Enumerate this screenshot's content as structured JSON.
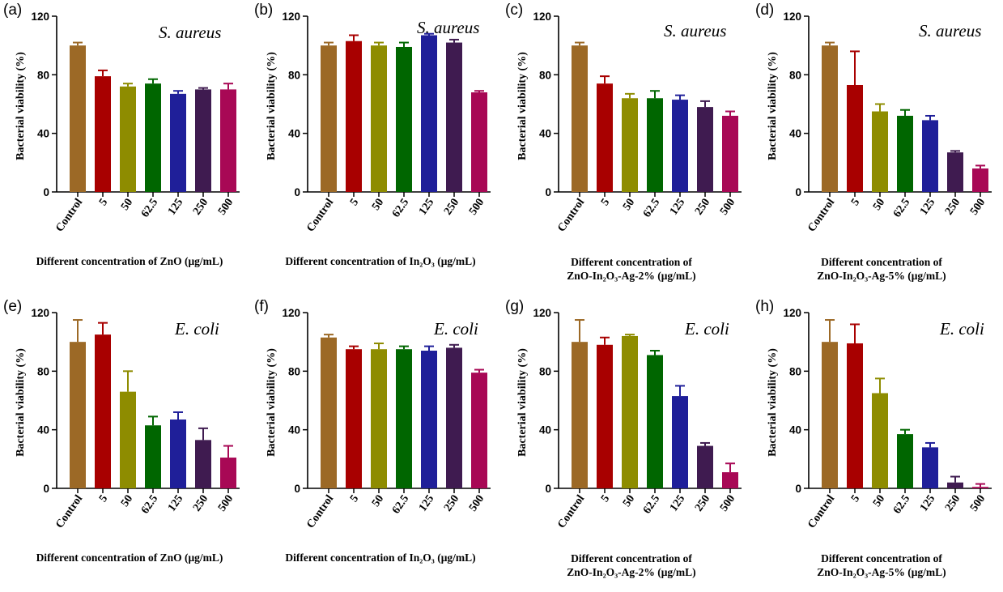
{
  "figure": {
    "y_axis_label": "Bacterial viability (%)"
  },
  "chart_data": [
    {
      "panel": "(a)",
      "type": "bar",
      "organism": "S. aureus",
      "xlabel_lines": [
        "Different concentration of ZnO (μg/mL)"
      ],
      "ylabel": "Bacterial viability (%)",
      "ylim": [
        0,
        120
      ],
      "yticks": [
        0,
        40,
        80,
        120
      ],
      "categories": [
        "Control",
        "5",
        "50",
        "62.5",
        "125",
        "250",
        "500"
      ],
      "values": [
        100,
        79,
        72,
        74,
        67,
        70,
        70
      ],
      "errors": [
        2,
        4,
        2,
        3,
        2,
        1,
        4
      ],
      "colors": [
        "#9C6926",
        "#A80000",
        "#8E8C00",
        "#006600",
        "#1F1F99",
        "#3F1B50",
        "#A80855"
      ]
    },
    {
      "panel": "(b)",
      "type": "bar",
      "organism": "S. aureus",
      "xlabel_lines": [
        "Different concentration of In₂O₃ (μg/mL)"
      ],
      "ylabel": "Bacterial viability (%)",
      "ylim": [
        0,
        120
      ],
      "yticks": [
        0,
        40,
        80,
        120
      ],
      "categories": [
        "Control",
        "5",
        "50",
        "62.5",
        "125",
        "250",
        "500"
      ],
      "values": [
        100,
        103,
        100,
        99,
        107,
        102,
        68
      ],
      "errors": [
        2,
        4,
        2,
        3,
        1,
        2,
        1
      ],
      "colors": [
        "#9C6926",
        "#A80000",
        "#8E8C00",
        "#006600",
        "#1F1F99",
        "#3F1B50",
        "#A80855"
      ]
    },
    {
      "panel": "(c)",
      "type": "bar",
      "organism": "S. aureus",
      "xlabel_lines": [
        "Different concentration of",
        "ZnO-In₂O₃-Ag-2% (μg/mL)"
      ],
      "ylabel": "Bacterial viability (%)",
      "ylim": [
        0,
        120
      ],
      "yticks": [
        0,
        40,
        80,
        120
      ],
      "categories": [
        "Control",
        "5",
        "50",
        "62.5",
        "125",
        "250",
        "500"
      ],
      "values": [
        100,
        74,
        64,
        64,
        63,
        58,
        52
      ],
      "errors": [
        2,
        5,
        3,
        5,
        3,
        4,
        3
      ],
      "colors": [
        "#9C6926",
        "#A80000",
        "#8E8C00",
        "#006600",
        "#1F1F99",
        "#3F1B50",
        "#A80855"
      ]
    },
    {
      "panel": "(d)",
      "type": "bar",
      "organism": "S. aureus",
      "xlabel_lines": [
        "Different concentration of",
        "ZnO-In₂O₃-Ag-5% (μg/mL)"
      ],
      "ylabel": "Bacterial viability (%)",
      "ylim": [
        0,
        120
      ],
      "yticks": [
        0,
        40,
        80,
        120
      ],
      "categories": [
        "Control",
        "5",
        "50",
        "62.5",
        "125",
        "250",
        "500"
      ],
      "values": [
        100,
        73,
        55,
        52,
        49,
        27,
        16
      ],
      "errors": [
        2,
        23,
        5,
        4,
        3,
        1,
        2
      ],
      "colors": [
        "#9C6926",
        "#A80000",
        "#8E8C00",
        "#006600",
        "#1F1F99",
        "#3F1B50",
        "#A80855"
      ]
    },
    {
      "panel": "(e)",
      "type": "bar",
      "organism": "E. coli",
      "xlabel_lines": [
        "Different concentration of ZnO (μg/mL)"
      ],
      "ylabel": "Bacterial viability (%)",
      "ylim": [
        0,
        120
      ],
      "yticks": [
        0,
        40,
        80,
        120
      ],
      "categories": [
        "Control",
        "5",
        "50",
        "62.5",
        "125",
        "250",
        "500"
      ],
      "values": [
        100,
        105,
        66,
        43,
        47,
        33,
        21
      ],
      "errors": [
        15,
        8,
        14,
        6,
        5,
        8,
        8
      ],
      "colors": [
        "#9C6926",
        "#A80000",
        "#8E8C00",
        "#006600",
        "#1F1F99",
        "#3F1B50",
        "#A80855"
      ]
    },
    {
      "panel": "(f)",
      "type": "bar",
      "organism": "E. coli",
      "xlabel_lines": [
        "Different concentration of In₂O₃ (μg/mL)"
      ],
      "ylabel": "Bacterial viability (%)",
      "ylim": [
        0,
        120
      ],
      "yticks": [
        0,
        40,
        80,
        120
      ],
      "categories": [
        "Control",
        "5",
        "50",
        "62.5",
        "125",
        "250",
        "500"
      ],
      "values": [
        103,
        95,
        95,
        95,
        94,
        96,
        79
      ],
      "errors": [
        2,
        2,
        4,
        2,
        3,
        2,
        2
      ],
      "colors": [
        "#9C6926",
        "#A80000",
        "#8E8C00",
        "#006600",
        "#1F1F99",
        "#3F1B50",
        "#A80855"
      ]
    },
    {
      "panel": "(g)",
      "type": "bar",
      "organism": "E. coli",
      "xlabel_lines": [
        "Different concentration of",
        "ZnO-In₂O₃-Ag-2% (μg/mL)"
      ],
      "ylabel": "Bacterial viability (%)",
      "ylim": [
        0,
        120
      ],
      "yticks": [
        0,
        40,
        80,
        120
      ],
      "categories": [
        "Control",
        "5",
        "50",
        "62.5",
        "125",
        "250",
        "500"
      ],
      "values": [
        100,
        98,
        104,
        91,
        63,
        29,
        11
      ],
      "errors": [
        15,
        5,
        1,
        3,
        7,
        2,
        6
      ],
      "colors": [
        "#9C6926",
        "#A80000",
        "#8E8C00",
        "#006600",
        "#1F1F99",
        "#3F1B50",
        "#A80855"
      ]
    },
    {
      "panel": "(h)",
      "type": "bar",
      "organism": "E. coli",
      "xlabel_lines": [
        "Different concentration of",
        "ZnO-In₂O₃-Ag-5% (μg/mL)"
      ],
      "ylabel": "Bacterial viability (%)",
      "ylim": [
        0,
        120
      ],
      "yticks": [
        0,
        40,
        80,
        120
      ],
      "categories": [
        "Control",
        "5",
        "50",
        "62.5",
        "125",
        "250",
        "500"
      ],
      "values": [
        100,
        99,
        65,
        37,
        28,
        4,
        1
      ],
      "errors": [
        15,
        13,
        10,
        3,
        3,
        4,
        2
      ],
      "colors": [
        "#9C6926",
        "#A80000",
        "#8E8C00",
        "#006600",
        "#1F1F99",
        "#3F1B50",
        "#A80855"
      ]
    }
  ]
}
